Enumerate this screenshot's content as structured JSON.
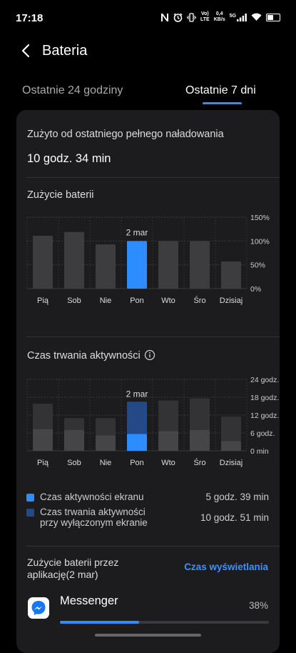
{
  "status": {
    "time": "17:18",
    "net_speed_value": "0,4",
    "net_speed_unit": "KB/s",
    "lte_top": "Vo)",
    "lte_bottom": "LTE",
    "signal_label": "5G"
  },
  "header": {
    "title": "Bateria"
  },
  "tabs": [
    {
      "label": "Ostatnie 24 godziny",
      "active": false
    },
    {
      "label": "Ostatnie 7 dni",
      "active": true
    }
  ],
  "summary": {
    "label": "Zużyto od ostatniego pełnego naładowania",
    "value": "10 godz. 34 min"
  },
  "chart_data": [
    {
      "type": "bar",
      "title": "Zużycie baterii",
      "categories": [
        "Pią",
        "Sob",
        "Nie",
        "Pon",
        "Wto",
        "Śro",
        "Dzisiaj"
      ],
      "values": [
        111,
        119,
        93,
        100,
        100,
        100,
        57
      ],
      "ylim": [
        0,
        150
      ],
      "yticks": [
        "0%",
        "50%",
        "100%",
        "150%"
      ],
      "highlight_index": 3,
      "highlight_label": "2 mar",
      "colors": {
        "bar": "#3d3d40",
        "highlight": "#2d8cff",
        "grid": "#3a3a3e"
      }
    },
    {
      "type": "bar",
      "title": "Czas trwania aktywności",
      "categories": [
        "Pią",
        "Sob",
        "Nie",
        "Pon",
        "Wto",
        "Śro",
        "Dzisiaj"
      ],
      "series": [
        {
          "name": "Czas aktywności ekranu",
          "values": [
            7.3,
            7.0,
            5.2,
            5.65,
            6.6,
            7.0,
            3.3
          ]
        },
        {
          "name": "Czas trwania aktywności przy wyłączonym ekranie",
          "values": [
            8.5,
            4.0,
            5.8,
            10.85,
            10.3,
            10.6,
            8.2
          ]
        }
      ],
      "stacked": true,
      "ylim": [
        0,
        24
      ],
      "yticks": [
        "0 min",
        "6 godz.",
        "12 godz.",
        "18 godz.",
        "24 godz."
      ],
      "highlight_index": 3,
      "highlight_label": "2 mar",
      "colors": {
        "screen_on": "#454548",
        "screen_off": "#333336",
        "hl_screen_on": "#2d8cff",
        "hl_screen_off": "#234a86"
      }
    }
  ],
  "legend": [
    {
      "label": "Czas aktywności ekranu",
      "value": "5 godz. 39 min",
      "color": "#2d8cff"
    },
    {
      "label_line1": "Czas trwania aktywności",
      "label_line2": "przy wyłączonym ekranie",
      "value": "10 godz. 51 min",
      "color": "#234a86"
    }
  ],
  "app_usage": {
    "title_line1": "Zużycie baterii przez",
    "title_line2": "aplikację(2 mar)",
    "toggle_label": "Czas wyświetlania",
    "apps": [
      {
        "name": "Messenger",
        "percent_label": "38%",
        "fraction": 0.38
      }
    ]
  }
}
